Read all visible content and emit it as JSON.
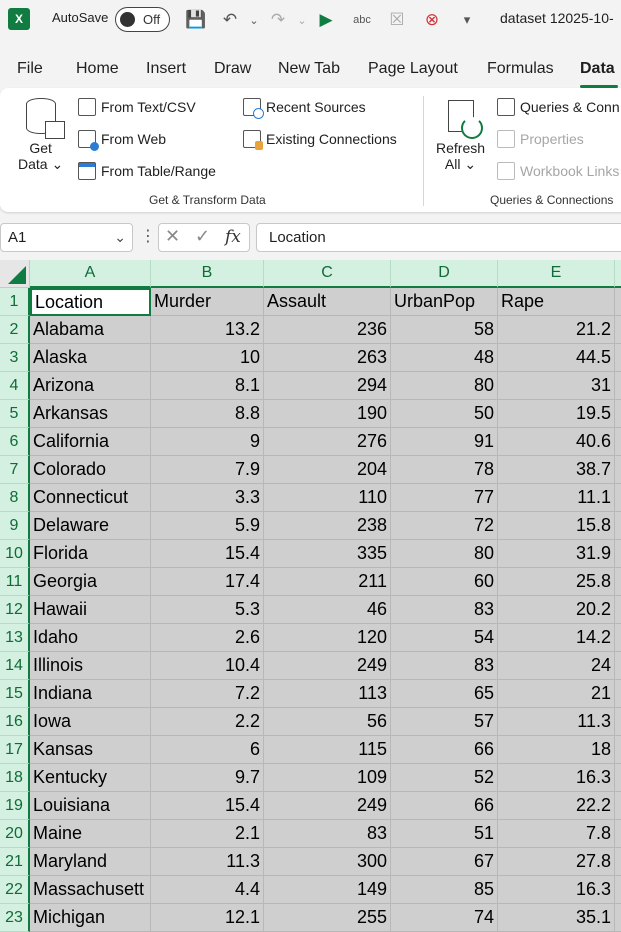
{
  "titlebar": {
    "app_logo": "X",
    "autosave_label": "AutoSave",
    "autosave_state": "Off",
    "doc_title": "dataset 12025-10-",
    "icons": [
      "save-icon",
      "undo-icon",
      "redo-icon",
      "macro-play-icon",
      "spelling-icon",
      "clear-icon",
      "data-validation-icon",
      "customize-toolbar-icon"
    ]
  },
  "tabs": [
    "File",
    "Home",
    "Insert",
    "Draw",
    "New Tab",
    "Page Layout",
    "Formulas",
    "Data"
  ],
  "active_tab": "Data",
  "ribbon": {
    "get_data": {
      "line1": "Get",
      "line2": "Data ⌄"
    },
    "from_text_csv": "From Text/CSV",
    "from_web": "From Web",
    "from_table_range": "From Table/Range",
    "recent_sources": "Recent Sources",
    "existing_connections": "Existing Connections",
    "group1_label": "Get & Transform Data",
    "refresh": {
      "line1": "Refresh",
      "line2": "All ⌄"
    },
    "queries_connections": "Queries & Conn",
    "properties": "Properties",
    "workbook_links": "Workbook Links",
    "group2_label": "Queries & Connections"
  },
  "formula_bar": {
    "name_box": "A1",
    "content": "Location"
  },
  "columns": [
    "A",
    "B",
    "C",
    "D",
    "E"
  ],
  "header_row": [
    "Location",
    "Murder",
    "Assault",
    "UrbanPop",
    "Rape"
  ],
  "rows": [
    [
      "Alabama",
      "13.2",
      "236",
      "58",
      "21.2"
    ],
    [
      "Alaska",
      "10",
      "263",
      "48",
      "44.5"
    ],
    [
      "Arizona",
      "8.1",
      "294",
      "80",
      "31"
    ],
    [
      "Arkansas",
      "8.8",
      "190",
      "50",
      "19.5"
    ],
    [
      "California",
      "9",
      "276",
      "91",
      "40.6"
    ],
    [
      "Colorado",
      "7.9",
      "204",
      "78",
      "38.7"
    ],
    [
      "Connecticut",
      "3.3",
      "110",
      "77",
      "11.1"
    ],
    [
      "Delaware",
      "5.9",
      "238",
      "72",
      "15.8"
    ],
    [
      "Florida",
      "15.4",
      "335",
      "80",
      "31.9"
    ],
    [
      "Georgia",
      "17.4",
      "211",
      "60",
      "25.8"
    ],
    [
      "Hawaii",
      "5.3",
      "46",
      "83",
      "20.2"
    ],
    [
      "Idaho",
      "2.6",
      "120",
      "54",
      "14.2"
    ],
    [
      "Illinois",
      "10.4",
      "249",
      "83",
      "24"
    ],
    [
      "Indiana",
      "7.2",
      "113",
      "65",
      "21"
    ],
    [
      "Iowa",
      "2.2",
      "56",
      "57",
      "11.3"
    ],
    [
      "Kansas",
      "6",
      "115",
      "66",
      "18"
    ],
    [
      "Kentucky",
      "9.7",
      "109",
      "52",
      "16.3"
    ],
    [
      "Louisiana",
      "15.4",
      "249",
      "66",
      "22.2"
    ],
    [
      "Maine",
      "2.1",
      "83",
      "51",
      "7.8"
    ],
    [
      "Maryland",
      "11.3",
      "300",
      "67",
      "27.8"
    ],
    [
      "Massachusett",
      "4.4",
      "149",
      "85",
      "16.3"
    ],
    [
      "Michigan",
      "12.1",
      "255",
      "74",
      "35.1"
    ]
  ],
  "colors": {
    "accent": "#107c41",
    "header_bg": "#d3f0e0",
    "selection_bg": "#cfcfcf"
  }
}
